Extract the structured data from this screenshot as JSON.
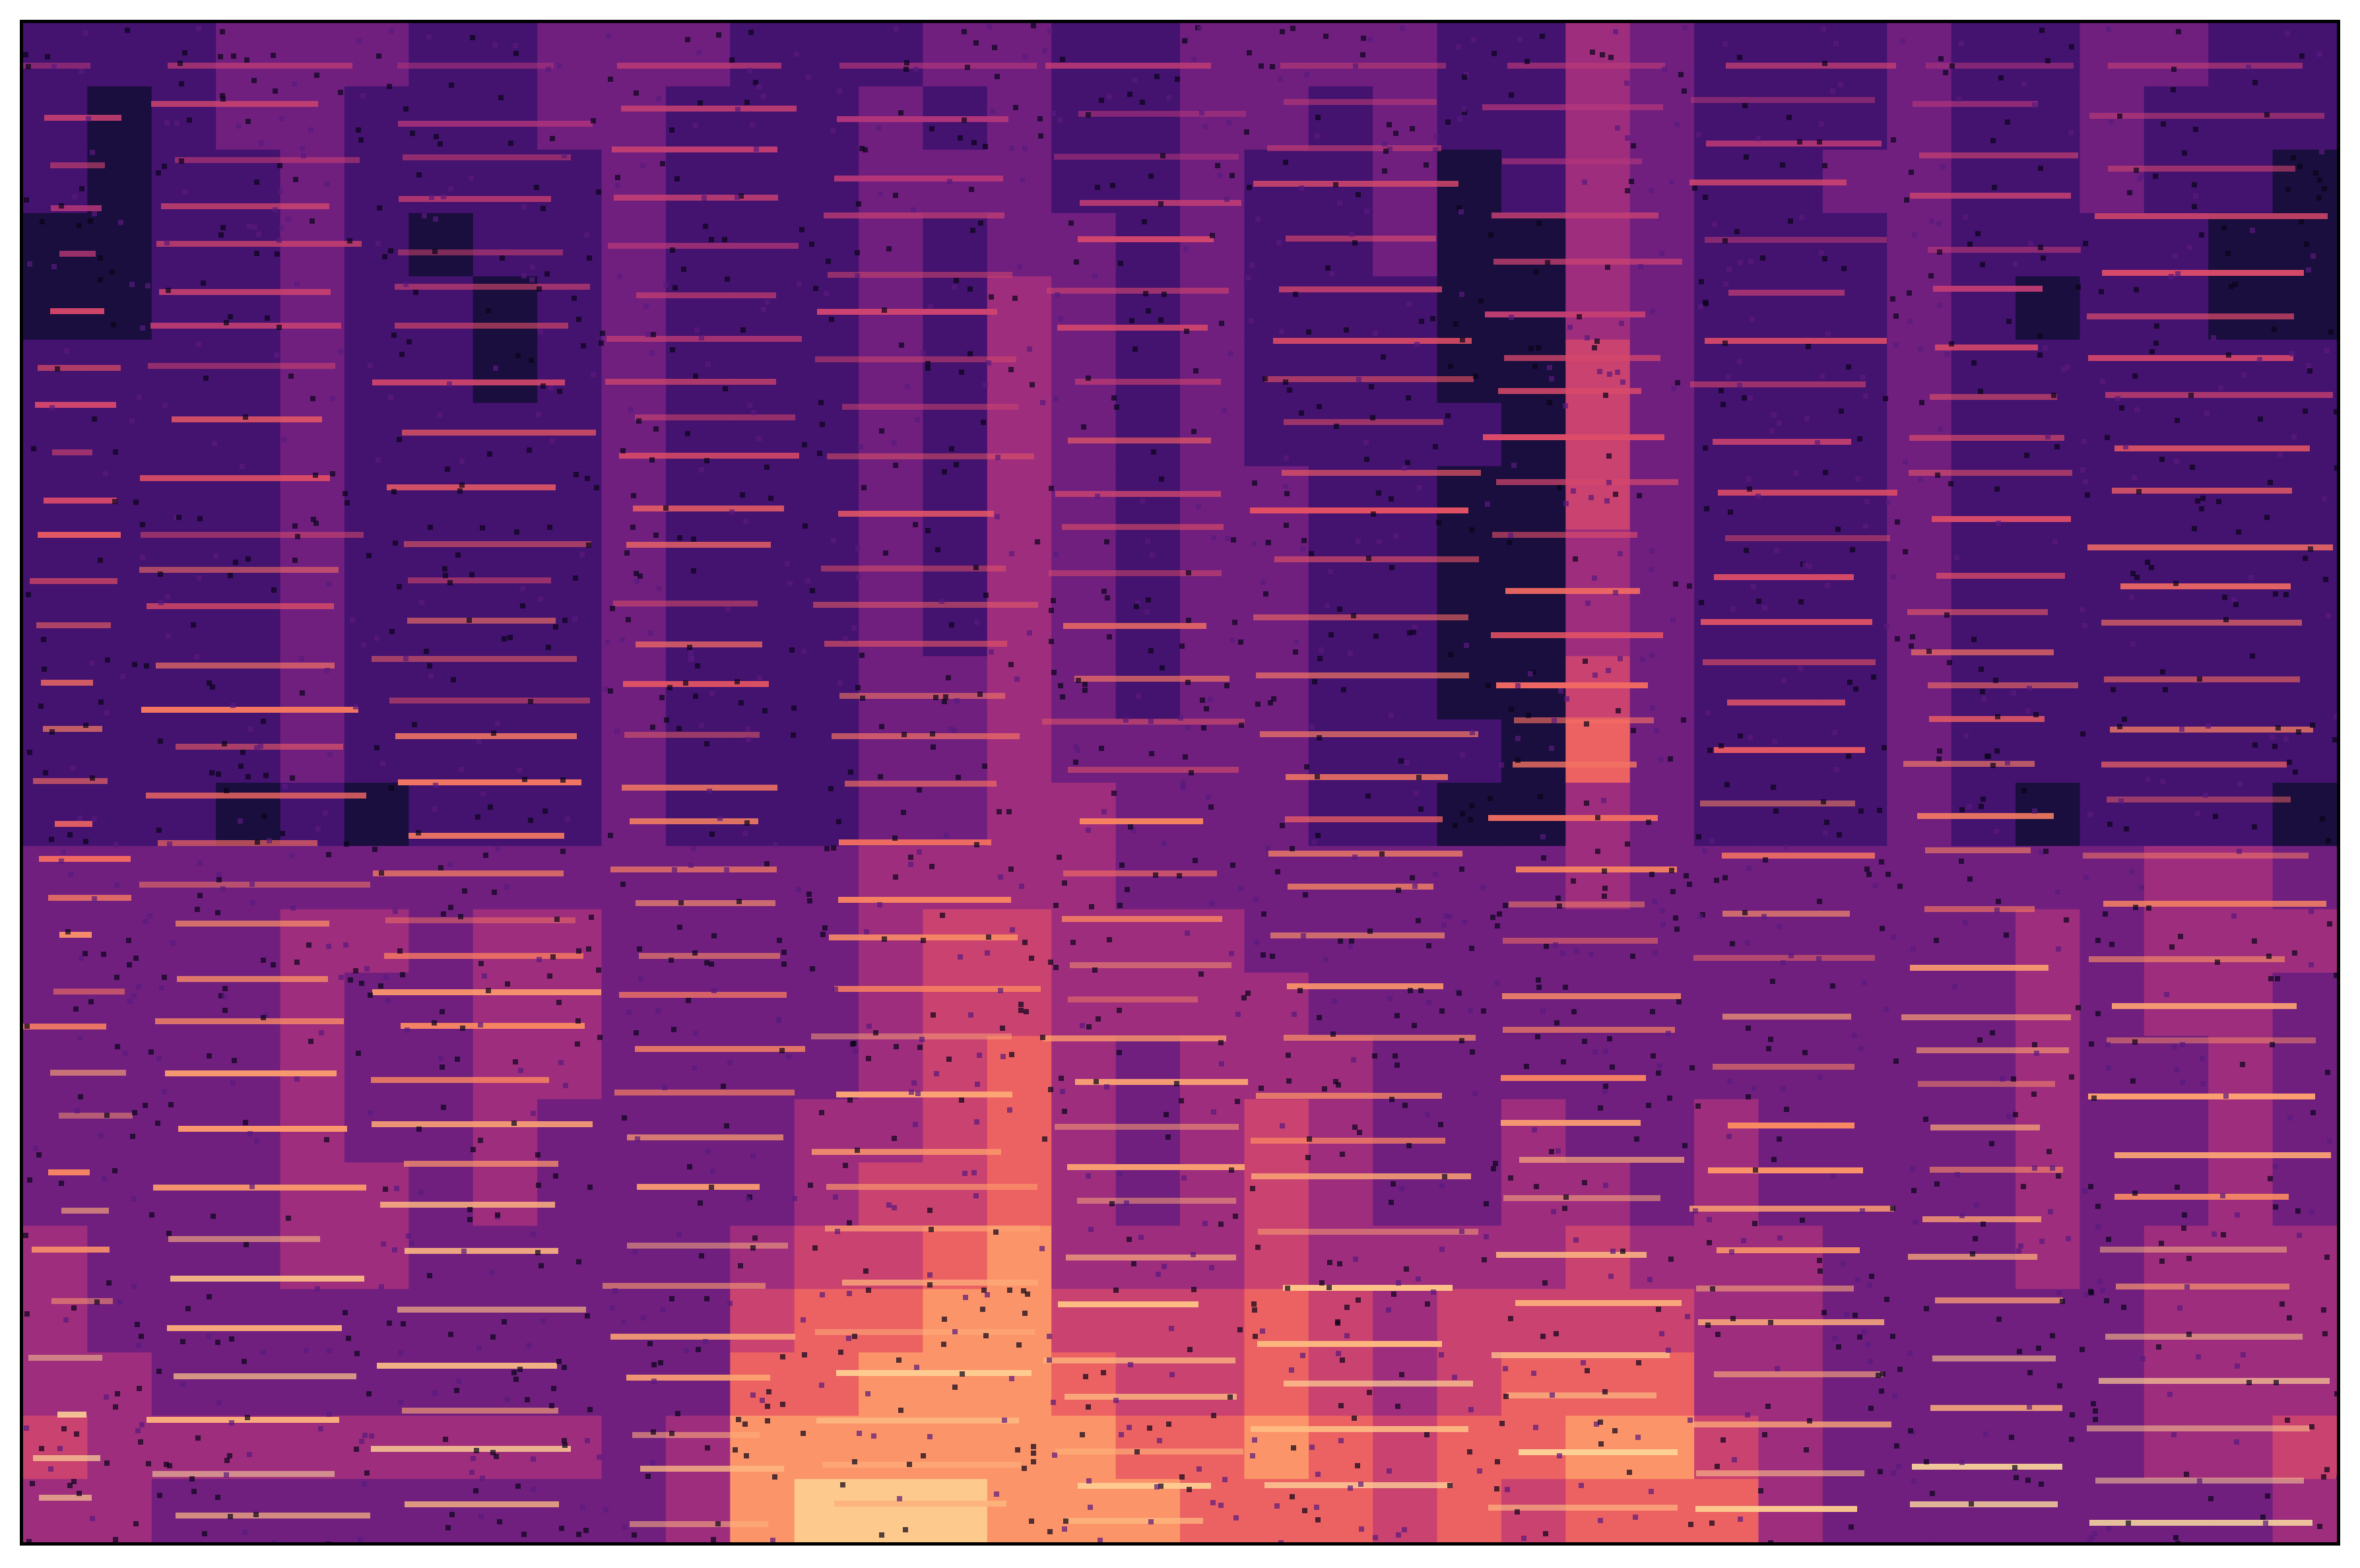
{
  "chart_data": {
    "type": "heatmap",
    "title": "",
    "xlabel": "",
    "ylabel": "",
    "colormap": "magma",
    "axes_visible": false,
    "grid": false,
    "legend": "none",
    "colormap_stops": [
      "#000004",
      "#1c1044",
      "#4f127b",
      "#812581",
      "#b5367a",
      "#e55064",
      "#fb8761",
      "#fec287",
      "#fcfdbf"
    ],
    "value_range": [
      0,
      9
    ],
    "rows_top_to_bottom": [
      [
        2,
        2,
        2,
        3,
        3,
        3,
        2,
        2,
        3,
        3,
        3,
        2,
        2,
        2,
        3,
        3,
        2,
        2,
        3,
        3,
        3,
        3,
        2,
        2,
        4,
        3,
        2,
        2,
        2,
        3,
        2,
        2,
        3,
        3,
        2,
        2
      ],
      [
        2,
        1,
        2,
        3,
        3,
        2,
        2,
        2,
        3,
        3,
        2,
        2,
        2,
        3,
        2,
        3,
        2,
        2,
        3,
        3,
        2,
        3,
        2,
        2,
        4,
        3,
        2,
        2,
        2,
        3,
        2,
        2,
        3,
        2,
        2,
        2
      ],
      [
        2,
        1,
        2,
        2,
        3,
        2,
        2,
        2,
        2,
        3,
        2,
        2,
        2,
        3,
        3,
        3,
        2,
        2,
        3,
        2,
        2,
        3,
        1,
        2,
        4,
        3,
        2,
        2,
        3,
        3,
        2,
        2,
        3,
        2,
        2,
        1
      ],
      [
        1,
        1,
        2,
        2,
        3,
        2,
        1,
        2,
        2,
        3,
        2,
        2,
        2,
        3,
        2,
        3,
        3,
        2,
        3,
        2,
        2,
        3,
        1,
        1,
        4,
        3,
        2,
        2,
        2,
        3,
        2,
        2,
        2,
        2,
        1,
        1
      ],
      [
        1,
        1,
        2,
        2,
        3,
        2,
        2,
        1,
        2,
        3,
        2,
        2,
        2,
        3,
        2,
        4,
        3,
        2,
        3,
        2,
        2,
        2,
        1,
        1,
        4,
        3,
        2,
        2,
        2,
        3,
        2,
        1,
        2,
        2,
        1,
        1
      ],
      [
        2,
        2,
        2,
        2,
        3,
        2,
        2,
        1,
        2,
        3,
        2,
        2,
        2,
        3,
        2,
        4,
        3,
        2,
        3,
        2,
        2,
        2,
        1,
        1,
        5,
        3,
        2,
        2,
        2,
        3,
        2,
        2,
        2,
        2,
        2,
        2
      ],
      [
        2,
        2,
        2,
        2,
        3,
        2,
        2,
        2,
        2,
        3,
        2,
        2,
        2,
        3,
        2,
        4,
        3,
        2,
        3,
        2,
        2,
        2,
        2,
        1,
        5,
        3,
        2,
        2,
        2,
        3,
        2,
        2,
        2,
        2,
        2,
        2
      ],
      [
        2,
        2,
        2,
        2,
        3,
        2,
        2,
        2,
        2,
        3,
        2,
        2,
        2,
        3,
        2,
        4,
        3,
        2,
        3,
        3,
        2,
        2,
        1,
        1,
        5,
        3,
        2,
        2,
        2,
        3,
        2,
        2,
        2,
        2,
        2,
        2
      ],
      [
        2,
        2,
        2,
        2,
        3,
        2,
        2,
        2,
        2,
        3,
        2,
        2,
        2,
        3,
        2,
        4,
        3,
        2,
        3,
        3,
        2,
        2,
        1,
        1,
        4,
        3,
        2,
        2,
        2,
        3,
        2,
        2,
        2,
        2,
        2,
        2
      ],
      [
        2,
        2,
        2,
        2,
        3,
        2,
        2,
        2,
        2,
        3,
        2,
        2,
        2,
        3,
        2,
        4,
        3,
        2,
        3,
        3,
        2,
        2,
        1,
        1,
        4,
        3,
        2,
        2,
        2,
        3,
        2,
        2,
        2,
        2,
        2,
        2
      ],
      [
        2,
        2,
        2,
        2,
        3,
        2,
        2,
        2,
        2,
        3,
        2,
        2,
        2,
        3,
        3,
        4,
        3,
        2,
        3,
        3,
        2,
        2,
        1,
        1,
        5,
        3,
        2,
        2,
        2,
        3,
        2,
        2,
        2,
        2,
        2,
        2
      ],
      [
        2,
        2,
        2,
        2,
        3,
        2,
        2,
        2,
        2,
        3,
        2,
        2,
        2,
        3,
        3,
        4,
        3,
        3,
        3,
        3,
        2,
        2,
        2,
        1,
        6,
        3,
        2,
        2,
        2,
        3,
        2,
        2,
        2,
        2,
        2,
        2
      ],
      [
        2,
        2,
        2,
        1,
        2,
        1,
        2,
        2,
        2,
        3,
        2,
        2,
        2,
        3,
        3,
        4,
        4,
        3,
        3,
        3,
        2,
        2,
        1,
        1,
        4,
        3,
        2,
        2,
        2,
        3,
        2,
        1,
        2,
        2,
        2,
        1
      ],
      [
        3,
        3,
        3,
        3,
        3,
        3,
        3,
        3,
        3,
        3,
        3,
        3,
        3,
        4,
        4,
        4,
        4,
        3,
        3,
        3,
        3,
        3,
        3,
        3,
        4,
        3,
        3,
        3,
        3,
        3,
        3,
        3,
        3,
        4,
        4,
        3
      ],
      [
        3,
        3,
        3,
        3,
        4,
        4,
        3,
        4,
        4,
        3,
        3,
        3,
        3,
        4,
        5,
        5,
        4,
        4,
        4,
        3,
        3,
        3,
        3,
        3,
        3,
        3,
        3,
        3,
        3,
        3,
        3,
        4,
        3,
        4,
        4,
        4
      ],
      [
        3,
        3,
        3,
        3,
        4,
        3,
        3,
        4,
        4,
        3,
        3,
        3,
        3,
        4,
        5,
        5,
        4,
        4,
        4,
        4,
        3,
        3,
        3,
        3,
        3,
        3,
        3,
        3,
        3,
        3,
        3,
        4,
        3,
        4,
        4,
        3
      ],
      [
        3,
        3,
        3,
        3,
        4,
        3,
        3,
        4,
        4,
        3,
        3,
        3,
        3,
        4,
        5,
        6,
        4,
        3,
        4,
        4,
        4,
        3,
        3,
        3,
        3,
        3,
        3,
        3,
        3,
        3,
        3,
        4,
        3,
        3,
        4,
        3
      ],
      [
        3,
        3,
        3,
        3,
        4,
        3,
        3,
        4,
        3,
        3,
        3,
        3,
        4,
        4,
        5,
        6,
        4,
        3,
        4,
        5,
        4,
        3,
        3,
        4,
        3,
        3,
        4,
        3,
        3,
        3,
        3,
        4,
        3,
        3,
        4,
        3
      ],
      [
        3,
        3,
        3,
        3,
        4,
        4,
        3,
        4,
        3,
        3,
        3,
        3,
        4,
        5,
        5,
        6,
        4,
        3,
        4,
        5,
        4,
        3,
        3,
        4,
        4,
        3,
        4,
        3,
        3,
        3,
        3,
        4,
        3,
        3,
        4,
        3
      ],
      [
        4,
        3,
        3,
        3,
        4,
        4,
        3,
        3,
        3,
        3,
        3,
        4,
        5,
        5,
        6,
        7,
        4,
        4,
        4,
        5,
        4,
        4,
        4,
        4,
        5,
        4,
        4,
        4,
        3,
        3,
        3,
        4,
        3,
        4,
        4,
        4
      ],
      [
        4,
        3,
        3,
        3,
        3,
        3,
        3,
        3,
        3,
        3,
        3,
        5,
        6,
        6,
        7,
        7,
        5,
        5,
        5,
        6,
        5,
        4,
        5,
        5,
        5,
        5,
        4,
        4,
        3,
        3,
        3,
        3,
        3,
        4,
        4,
        4
      ],
      [
        4,
        4,
        3,
        3,
        3,
        3,
        3,
        3,
        3,
        3,
        3,
        6,
        6,
        7,
        7,
        7,
        6,
        5,
        5,
        6,
        5,
        4,
        5,
        6,
        6,
        6,
        4,
        4,
        3,
        3,
        3,
        3,
        3,
        4,
        4,
        4
      ],
      [
        5,
        4,
        4,
        4,
        4,
        4,
        4,
        4,
        4,
        3,
        4,
        7,
        7,
        7,
        7,
        7,
        7,
        6,
        6,
        7,
        6,
        5,
        6,
        6,
        7,
        7,
        5,
        4,
        3,
        3,
        3,
        3,
        3,
        4,
        4,
        5
      ],
      [
        4,
        4,
        3,
        3,
        3,
        3,
        3,
        3,
        3,
        3,
        4,
        7,
        8,
        8,
        8,
        7,
        7,
        7,
        6,
        6,
        6,
        5,
        6,
        5,
        6,
        6,
        6,
        4,
        3,
        3,
        3,
        3,
        3,
        3,
        3,
        4
      ]
    ]
  }
}
